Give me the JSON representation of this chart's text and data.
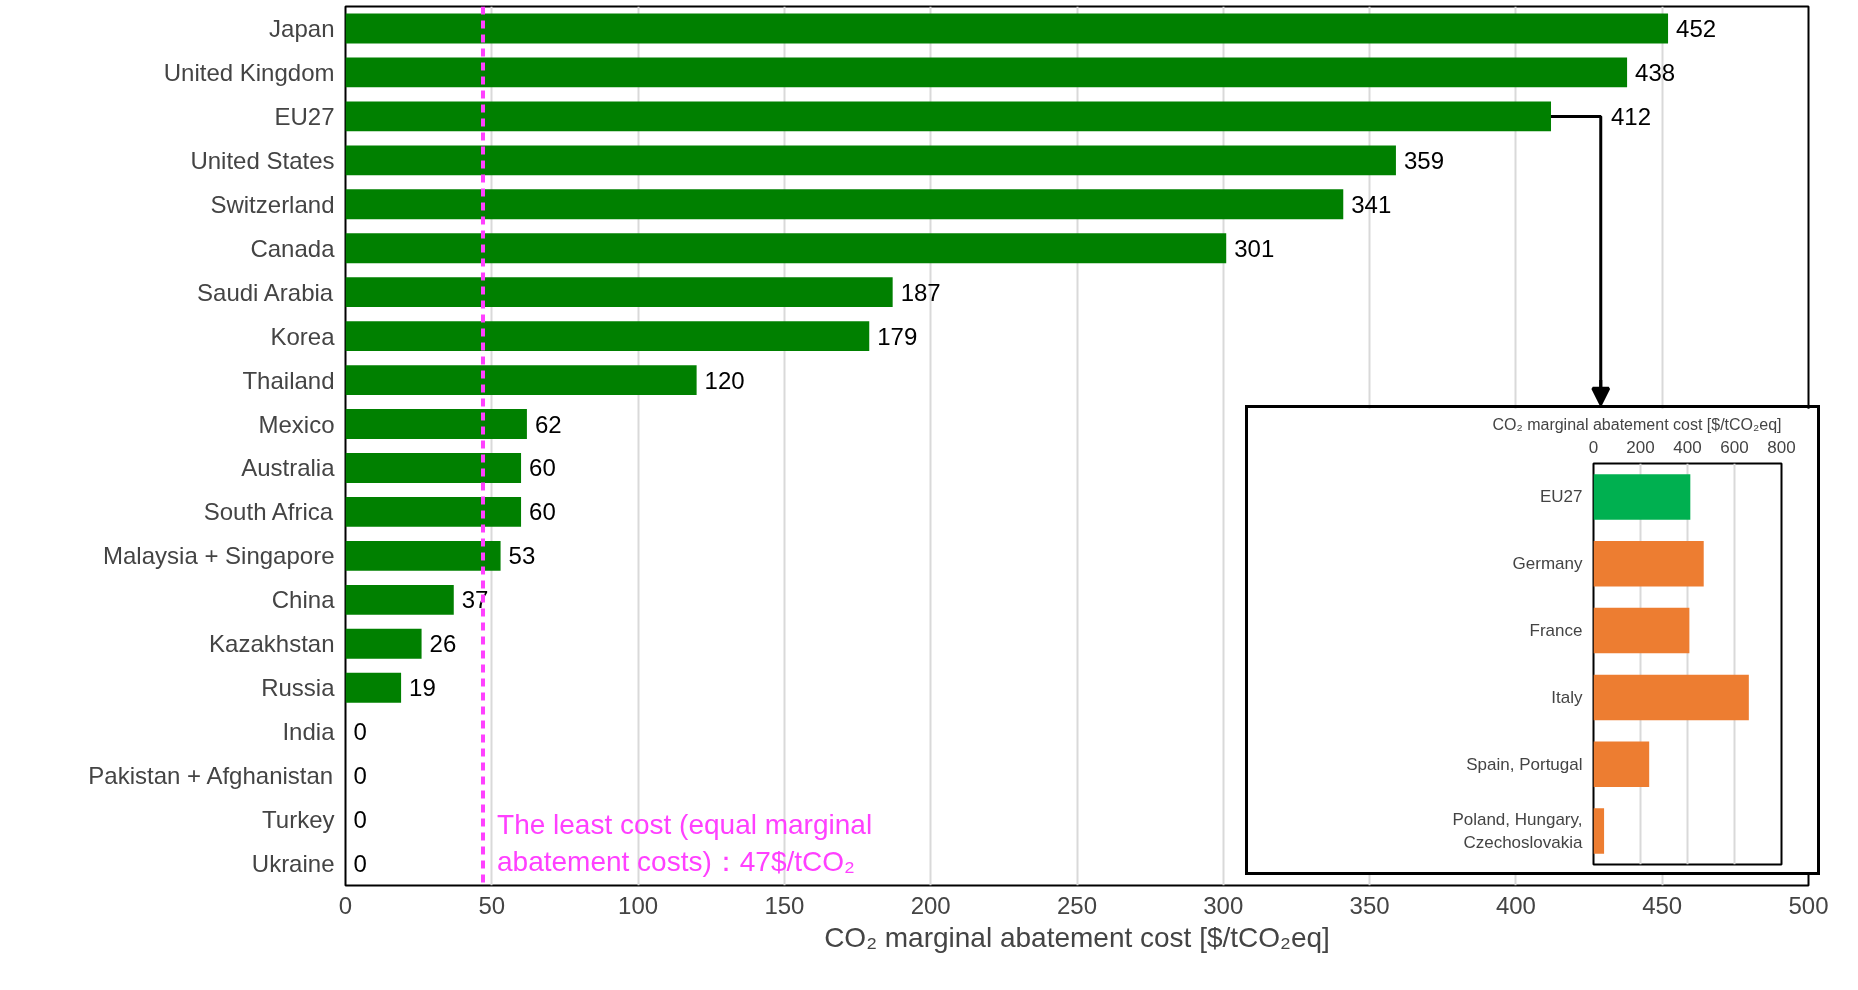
{
  "chart_data": [
    {
      "type": "bar",
      "orientation": "horizontal",
      "xlabel": "CO₂ marginal abatement cost [$/tCO₂eq]",
      "categories": [
        "Japan",
        "United Kingdom",
        "EU27",
        "United States",
        "Switzerland",
        "Canada",
        "Saudi Arabia",
        "Korea",
        "Thailand",
        "Mexico",
        "Australia",
        "South Africa",
        "Malaysia + Singapore",
        "China",
        "Kazakhstan",
        "Russia",
        "India",
        "Pakistan + Afghanistan",
        "Turkey",
        "Ukraine"
      ],
      "values": [
        452,
        438,
        412,
        359,
        341,
        301,
        187,
        179,
        120,
        62,
        60,
        60,
        53,
        37,
        26,
        19,
        0,
        0,
        0,
        0
      ],
      "color": "#008000",
      "data_labels": true,
      "xlim": [
        0,
        500
      ],
      "xticks": [
        0,
        50,
        100,
        150,
        200,
        250,
        300,
        350,
        400,
        450,
        500
      ],
      "grid": "x",
      "ref_lines": [
        {
          "axis": "x",
          "value": 47,
          "label": "The least cost (equal marginal\nabatement costs)：47$/tCO₂",
          "color": "#ff40ff",
          "line_style": "dashed"
        }
      ]
    },
    {
      "type": "bar",
      "orientation": "horizontal",
      "xlabel": "CO₂ marginal abatement cost [$/tCO₂eq]",
      "categories": [
        "EU27",
        "Germany",
        "France",
        "Italy",
        "Spain, Portugal",
        "Poland, Hungary,\nCzechoslovakia"
      ],
      "values": [
        412,
        469,
        408,
        661,
        237,
        45
      ],
      "colors": [
        "#00b050",
        "#ed7d31",
        "#ed7d31",
        "#ed7d31",
        "#ed7d31",
        "#ed7d31"
      ],
      "xlim": [
        0,
        800
      ],
      "xticks": [
        0,
        200,
        400,
        600,
        800
      ],
      "grid": "x"
    }
  ]
}
